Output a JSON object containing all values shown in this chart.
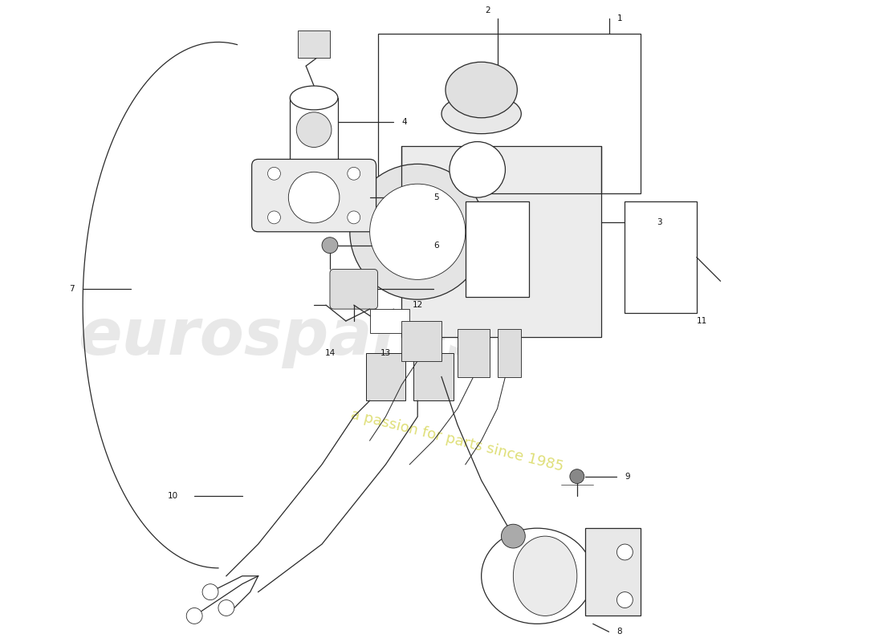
{
  "bg_color": "#ffffff",
  "line_color": "#2a2a2a",
  "label_color": "#111111",
  "watermark_text1": "eurospares",
  "watermark_text2": "a passion for parts since 1985",
  "watermark_color1": "#cccccc",
  "watermark_color2": "#d4d44a",
  "parts_labels": [
    "1",
    "2",
    "3",
    "4",
    "5",
    "6",
    "7",
    "8",
    "9",
    "10",
    "11",
    "12",
    "13",
    "14"
  ]
}
